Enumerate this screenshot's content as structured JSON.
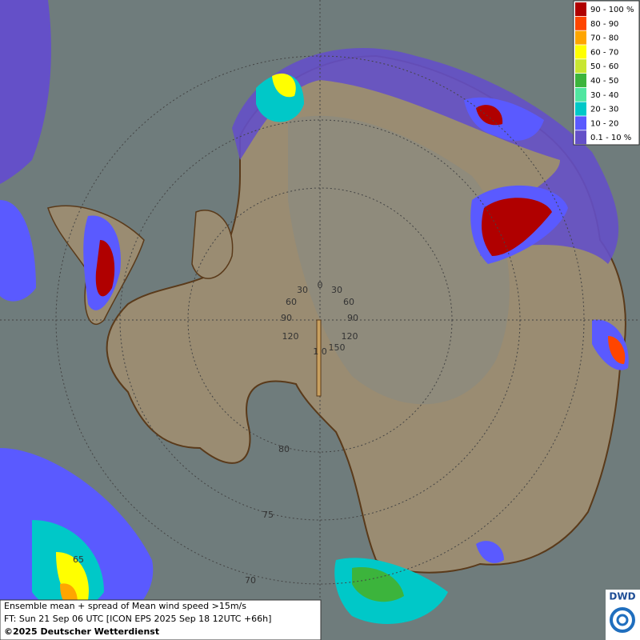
{
  "legend": {
    "items": [
      {
        "label": "90 - 100 %",
        "color": "#b00000"
      },
      {
        "label": "80 - 90",
        "color": "#ff4500"
      },
      {
        "label": "70 - 80",
        "color": "#ffa500"
      },
      {
        "label": "60 - 70",
        "color": "#ffff00"
      },
      {
        "label": "50 - 60",
        "color": "#c8e632"
      },
      {
        "label": "40 - 50",
        "color": "#3cb43c"
      },
      {
        "label": "30 - 40",
        "color": "#50e6a0"
      },
      {
        "label": "20 - 30",
        "color": "#00c8c8"
      },
      {
        "label": "10 - 20",
        "color": "#5a5aff"
      },
      {
        "label": "0.1 - 10 %",
        "color": "#6450c8"
      }
    ]
  },
  "graticule": {
    "labels": [
      "0",
      "30",
      "30",
      "60",
      "60",
      "90",
      "90",
      "120",
      "120",
      "150",
      "1 0",
      "80",
      "75",
      "70",
      "65"
    ]
  },
  "caption": {
    "lines": [
      "Ensemble mean + spread of Mean wind speed >15m/s",
      "FT: Sun 21 Sep 06 UTC [ICON EPS 2025 Sep 18 12UTC +66h]",
      "©2025 Deutscher Wetterdienst"
    ]
  },
  "logo": {
    "text": "DWD"
  }
}
